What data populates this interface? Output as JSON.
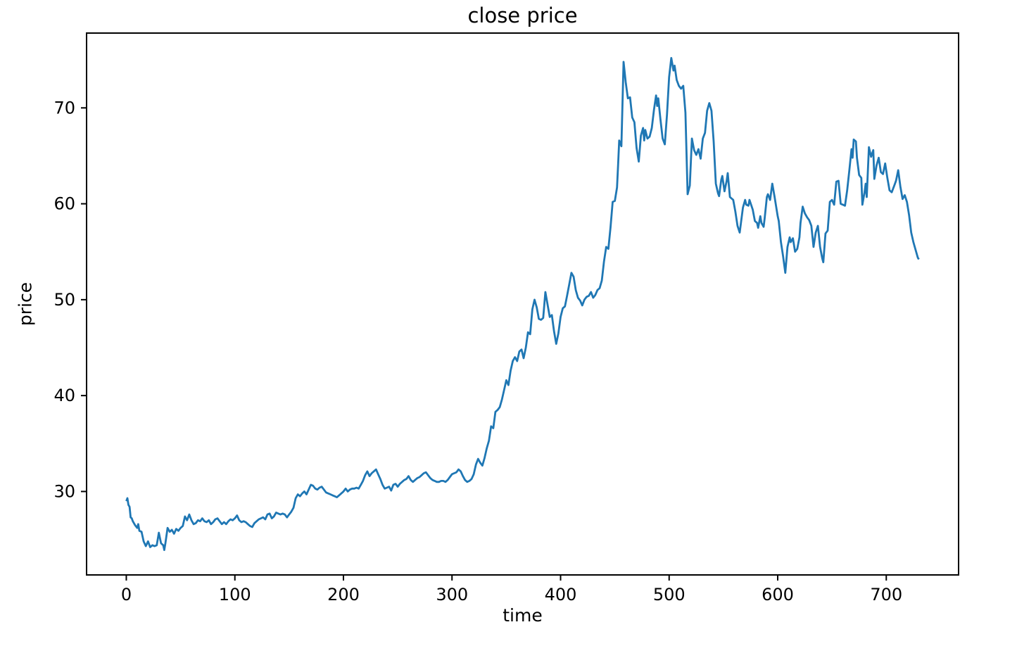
{
  "figure": {
    "background": "#ffffff",
    "text_color": "#000000"
  },
  "chart_data": {
    "type": "line",
    "title": "close price",
    "xlabel": "time",
    "ylabel": "price",
    "grid": false,
    "legend": "none",
    "line_color": "#1f77b4",
    "axis_color": "#000000",
    "xlim": [
      -36.6,
      766.6
    ],
    "ylim": [
      21.3,
      77.8
    ],
    "x_ticks": [
      0,
      100,
      200,
      300,
      400,
      500,
      600,
      700
    ],
    "y_ticks": [
      30,
      40,
      50,
      60,
      70
    ],
    "series": [
      {
        "name": "close price",
        "x": [
          0,
          1,
          2,
          3,
          4,
          5,
          6,
          8,
          10,
          11,
          12,
          14,
          15,
          16,
          18,
          20,
          22,
          24,
          26,
          28,
          30,
          32,
          34,
          35,
          36,
          38,
          40,
          42,
          44,
          46,
          48,
          50,
          52,
          54,
          56,
          58,
          60,
          62,
          64,
          66,
          68,
          70,
          72,
          74,
          76,
          78,
          80,
          82,
          84,
          86,
          88,
          90,
          92,
          94,
          96,
          98,
          100,
          102,
          104,
          106,
          108,
          110,
          112,
          114,
          116,
          118,
          120,
          122,
          124,
          126,
          128,
          130,
          132,
          134,
          136,
          138,
          140,
          142,
          144,
          146,
          148,
          150,
          152,
          154,
          156,
          158,
          160,
          162,
          164,
          166,
          168,
          170,
          172,
          174,
          176,
          178,
          180,
          182,
          184,
          186,
          188,
          190,
          192,
          194,
          196,
          198,
          200,
          202,
          204,
          206,
          208,
          210,
          212,
          214,
          216,
          218,
          220,
          222,
          224,
          226,
          228,
          230,
          232,
          234,
          236,
          238,
          240,
          242,
          244,
          246,
          248,
          250,
          252,
          254,
          256,
          258,
          260,
          262,
          264,
          266,
          268,
          270,
          272,
          274,
          276,
          278,
          280,
          282,
          284,
          286,
          288,
          290,
          292,
          294,
          296,
          298,
          300,
          302,
          304,
          306,
          308,
          310,
          312,
          314,
          316,
          318,
          320,
          322,
          324,
          326,
          328,
          330,
          332,
          334,
          336,
          338,
          340,
          342,
          344,
          346,
          348,
          350,
          352,
          354,
          356,
          358,
          360,
          362,
          364,
          366,
          368,
          370,
          372,
          374,
          376,
          378,
          380,
          382,
          384,
          386,
          388,
          390,
          392,
          394,
          396,
          398,
          400,
          402,
          404,
          406,
          408,
          410,
          412,
          414,
          416,
          418,
          420,
          422,
          424,
          426,
          428,
          430,
          432,
          434,
          436,
          438,
          440,
          442,
          444,
          446,
          448,
          450,
          452,
          453,
          454,
          456,
          458,
          460,
          462,
          464,
          466,
          468,
          470,
          472,
          474,
          476,
          477,
          478,
          480,
          482,
          484,
          486,
          488,
          489,
          490,
          492,
          494,
          496,
          498,
          500,
          502,
          504,
          505,
          507,
          509,
          511,
          513,
          515,
          517,
          519,
          521,
          523,
          525,
          527,
          529,
          531,
          533,
          535,
          537,
          539,
          541,
          543,
          545,
          546,
          548,
          549,
          551,
          553,
          554,
          556,
          559,
          561,
          563,
          565,
          568,
          570,
          571,
          573,
          574,
          577,
          579,
          581,
          582,
          584,
          585,
          587,
          588,
          590,
          591,
          593,
          595,
          597,
          600,
          601,
          603,
          605,
          607,
          609,
          611,
          612,
          614,
          616,
          618,
          620,
          621,
          623,
          625,
          627,
          629,
          631,
          633,
          635,
          637,
          639,
          641,
          642,
          644,
          646,
          648,
          650,
          652,
          654,
          656,
          658,
          660,
          662,
          664,
          666,
          668,
          669,
          670,
          672,
          673,
          675,
          677,
          678,
          680,
          681,
          682,
          684,
          686,
          688,
          689,
          691,
          693,
          695,
          697,
          699,
          701,
          703,
          705,
          707,
          709,
          711,
          713,
          715,
          717,
          719,
          721,
          723,
          725,
          727,
          729,
          730
        ],
        "y": [
          29.0,
          29.3,
          28.6,
          28.4,
          27.3,
          27.2,
          26.9,
          26.5,
          26.2,
          26.6,
          25.9,
          25.8,
          25.3,
          24.8,
          24.3,
          24.8,
          24.2,
          24.4,
          24.3,
          24.4,
          25.7,
          24.6,
          24.4,
          23.9,
          24.6,
          26.2,
          25.8,
          26.0,
          25.6,
          26.1,
          25.9,
          26.2,
          26.4,
          27.4,
          27.0,
          27.6,
          27.0,
          26.6,
          26.7,
          27.0,
          26.9,
          27.2,
          26.9,
          26.8,
          27.0,
          26.6,
          26.8,
          27.1,
          27.2,
          26.9,
          26.6,
          26.8,
          26.6,
          26.9,
          27.1,
          27.0,
          27.2,
          27.5,
          27.0,
          26.8,
          26.9,
          26.8,
          26.6,
          26.4,
          26.3,
          26.7,
          26.9,
          27.1,
          27.2,
          27.3,
          27.1,
          27.6,
          27.7,
          27.2,
          27.4,
          27.8,
          27.7,
          27.6,
          27.7,
          27.6,
          27.3,
          27.6,
          27.9,
          28.3,
          29.3,
          29.7,
          29.5,
          29.8,
          30.0,
          29.7,
          30.2,
          30.7,
          30.6,
          30.3,
          30.2,
          30.4,
          30.5,
          30.2,
          29.9,
          29.8,
          29.7,
          29.6,
          29.5,
          29.4,
          29.6,
          29.8,
          30.0,
          30.3,
          30.0,
          30.2,
          30.3,
          30.3,
          30.4,
          30.3,
          30.7,
          31.1,
          31.7,
          32.1,
          31.6,
          31.9,
          32.1,
          32.3,
          31.8,
          31.3,
          30.7,
          30.3,
          30.4,
          30.5,
          30.1,
          30.7,
          30.8,
          30.5,
          30.8,
          31.0,
          31.2,
          31.3,
          31.6,
          31.2,
          31.0,
          31.2,
          31.4,
          31.5,
          31.7,
          31.9,
          32.0,
          31.7,
          31.4,
          31.2,
          31.1,
          31.0,
          31.0,
          31.1,
          31.1,
          31.0,
          31.2,
          31.5,
          31.8,
          31.9,
          32.0,
          32.3,
          32.1,
          31.6,
          31.2,
          31.0,
          31.1,
          31.3,
          31.8,
          32.8,
          33.4,
          33.0,
          32.7,
          33.5,
          34.5,
          35.3,
          36.8,
          36.6,
          38.3,
          38.5,
          38.8,
          39.6,
          40.6,
          41.6,
          41.1,
          42.6,
          43.6,
          44.0,
          43.6,
          44.6,
          44.8,
          43.9,
          45.0,
          46.6,
          46.4,
          49.0,
          50.0,
          49.2,
          48.0,
          47.9,
          48.1,
          50.8,
          49.5,
          48.2,
          48.4,
          46.7,
          45.4,
          46.5,
          48.2,
          49.1,
          49.3,
          50.4,
          51.6,
          52.8,
          52.4,
          51.0,
          50.2,
          49.9,
          49.4,
          50.0,
          50.3,
          50.4,
          50.8,
          50.2,
          50.5,
          51.0,
          51.2,
          52.0,
          54.0,
          55.5,
          55.3,
          57.5,
          60.2,
          60.3,
          61.7,
          64.0,
          66.6,
          66.0,
          74.8,
          72.7,
          71.0,
          71.1,
          69.0,
          68.5,
          65.8,
          64.4,
          67.1,
          67.9,
          66.6,
          67.7,
          66.8,
          67.0,
          67.9,
          69.8,
          71.3,
          70.2,
          71.0,
          68.8,
          66.8,
          66.2,
          69.3,
          73.2,
          75.2,
          73.9,
          74.4,
          72.9,
          72.3,
          72.0,
          72.3,
          69.5,
          61.0,
          61.9,
          66.8,
          65.6,
          65.1,
          65.7,
          64.7,
          66.8,
          67.4,
          69.7,
          70.5,
          69.7,
          66.5,
          62.1,
          61.1,
          60.8,
          62.5,
          62.9,
          61.3,
          62.4,
          63.2,
          60.7,
          60.4,
          59.2,
          57.7,
          57.0,
          59.6,
          60.4,
          59.9,
          59.8,
          60.4,
          59.4,
          58.2,
          58.0,
          57.5,
          58.7,
          58.0,
          57.6,
          58.5,
          60.7,
          61.0,
          60.4,
          62.1,
          60.8,
          58.7,
          58.2,
          56.0,
          54.5,
          52.8,
          55.5,
          56.5,
          56.0,
          56.4,
          55.0,
          55.3,
          56.5,
          58.0,
          59.7,
          59.0,
          58.6,
          58.3,
          57.7,
          55.5,
          57.0,
          57.7,
          55.5,
          54.3,
          53.9,
          56.9,
          57.2,
          60.2,
          60.4,
          59.9,
          62.3,
          62.4,
          60.0,
          59.9,
          59.8,
          61.4,
          63.5,
          65.7,
          64.8,
          66.7,
          66.5,
          64.8,
          63.0,
          62.7,
          59.9,
          61.2,
          62.1,
          60.7,
          65.9,
          64.9,
          65.6,
          62.6,
          64.0,
          64.8,
          63.3,
          63.1,
          64.2,
          62.7,
          61.4,
          61.2,
          61.8,
          62.4,
          63.5,
          61.8,
          60.5,
          60.9,
          60.2,
          58.8,
          57.0,
          56.0,
          55.2,
          54.4,
          54.2
        ]
      }
    ]
  }
}
